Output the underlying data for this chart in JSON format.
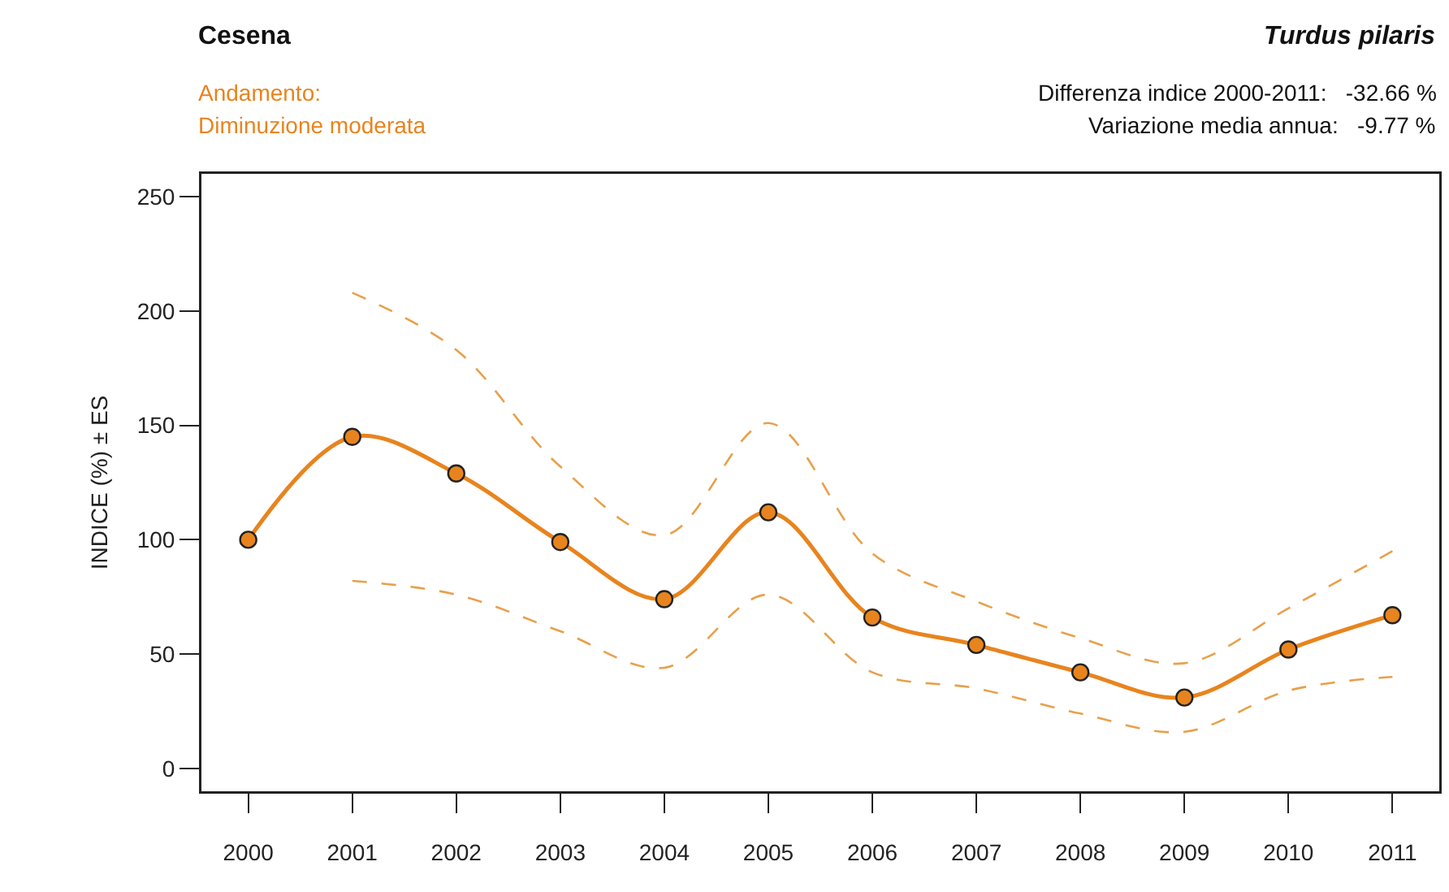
{
  "chart_data": {
    "type": "line",
    "title": "Cesena",
    "subtitle": "Turdus pilaris",
    "ylabel": "INDICE (%) ± ES",
    "annotations": [
      "Andamento:",
      "Diminuzione moderata",
      "Differenza indice 2000-2011:   -32.66 %",
      "Variazione media annua:   -9.77 %"
    ],
    "categories": [
      "2000",
      "2001",
      "2002",
      "2003",
      "2004",
      "2005",
      "2006",
      "2007",
      "2008",
      "2009",
      "2010",
      "2011"
    ],
    "series": [
      {
        "color": "#e8841e",
        "marker": "circle",
        "line_style": "solid",
        "values": [
          100,
          145,
          129,
          99,
          74,
          112,
          66,
          54,
          42,
          31,
          52,
          67
        ]
      },
      {
        "color": "#e8a04a",
        "marker": "none",
        "line_style": "dashed",
        "values": [
          null,
          208,
          183,
          132,
          102,
          151,
          94,
          73,
          57,
          46,
          70,
          95
        ]
      },
      {
        "color": "#e8a04a",
        "marker": "none",
        "line_style": "dashed",
        "values": [
          null,
          82,
          76,
          60,
          44,
          76,
          42,
          35,
          24,
          16,
          34,
          40
        ]
      }
    ],
    "ylim": [
      -10,
      260
    ],
    "yticks": [
      0,
      50,
      100,
      150,
      200,
      250
    ],
    "grid": false
  }
}
